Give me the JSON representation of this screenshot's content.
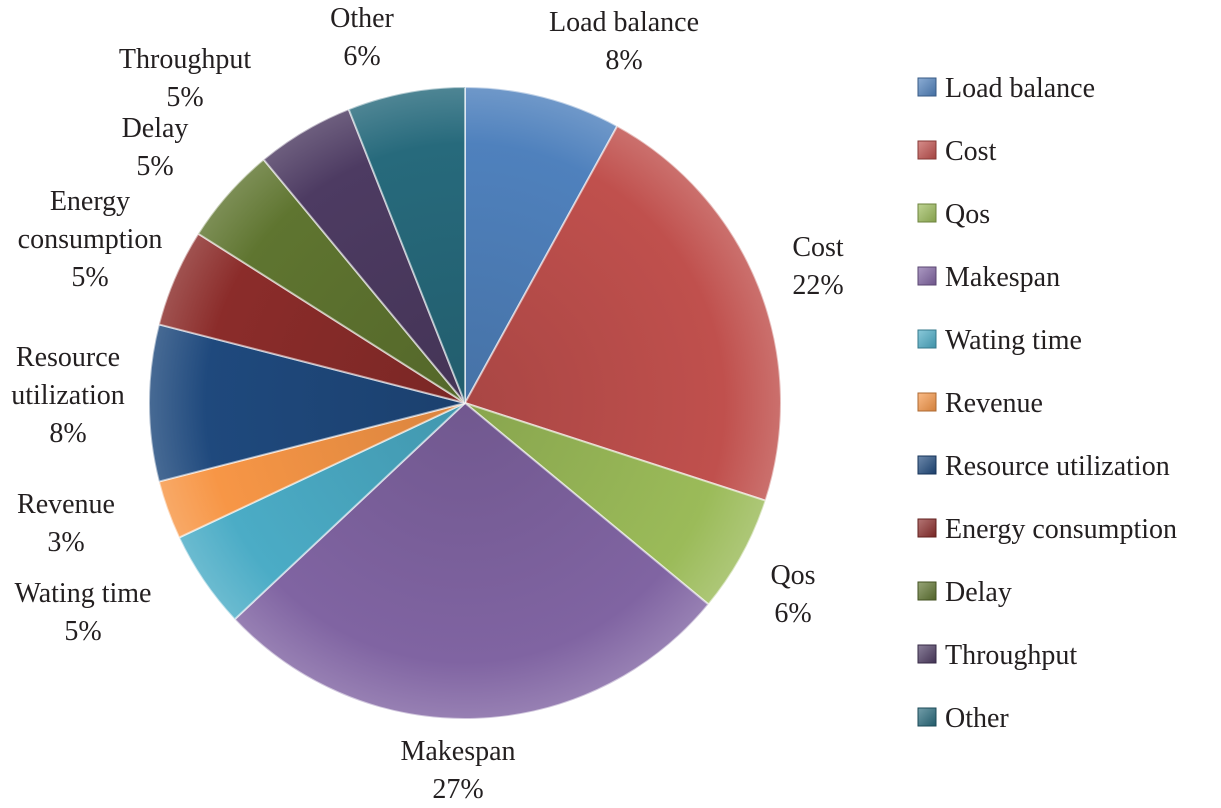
{
  "chart_data": {
    "type": "pie",
    "title": "",
    "legend_position": "right",
    "slices": [
      {
        "label": "Load balance",
        "slice_label": [
          "Load balance"
        ],
        "value": 8,
        "value_label": "8%",
        "color": "#4f81bd"
      },
      {
        "label": "Cost",
        "slice_label": [
          "Cost"
        ],
        "value": 22,
        "value_label": "22%",
        "color": "#c0504d"
      },
      {
        "label": "Qos",
        "slice_label": [
          "Qos"
        ],
        "value": 6,
        "value_label": "6%",
        "color": "#9bbb59"
      },
      {
        "label": "Makespan",
        "slice_label": [
          "Makespan"
        ],
        "value": 27,
        "value_label": "27%",
        "color": "#8064a2"
      },
      {
        "label": "Wating time",
        "slice_label": [
          "Wating time"
        ],
        "value": 5,
        "value_label": "5%",
        "color": "#4bacc6"
      },
      {
        "label": "Revenue",
        "slice_label": [
          "Revenue"
        ],
        "value": 3,
        "value_label": "3%",
        "color": "#f79646"
      },
      {
        "label": "Resource utilization",
        "slice_label": [
          "Resource",
          "utilization"
        ],
        "value": 8,
        "value_label": "8%",
        "color": "#1f497d"
      },
      {
        "label": "Energy consumption",
        "slice_label": [
          "Energy",
          "consumption"
        ],
        "value": 5,
        "value_label": "5%",
        "color": "#8b2c2a"
      },
      {
        "label": "Delay",
        "slice_label": [
          "Delay"
        ],
        "value": 5,
        "value_label": "5%",
        "color": "#5f7530"
      },
      {
        "label": "Throughput",
        "slice_label": [
          "Throughput"
        ],
        "value": 5,
        "value_label": "5%",
        "color": "#4d3b62"
      },
      {
        "label": "Other",
        "slice_label": [
          "Other"
        ],
        "value": 6,
        "value_label": "6%",
        "color": "#276a7c"
      }
    ]
  }
}
